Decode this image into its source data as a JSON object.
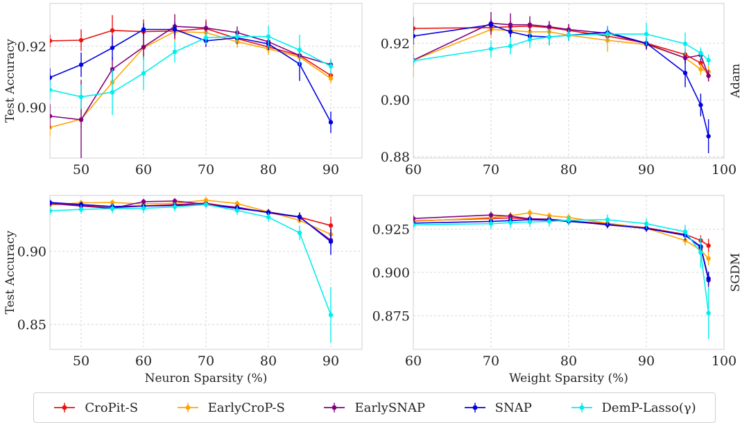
{
  "legend": [
    {
      "label": "CroPit-S",
      "color": "#e8110f"
    },
    {
      "label": "EarlyCroP-S",
      "color": "#ffa500"
    },
    {
      "label": "EarlySNAP",
      "color": "#800080"
    },
    {
      "label": "SNAP",
      "color": "#0000e0"
    },
    {
      "label": "DemP-Lasso(γ)",
      "color": "#00eeee"
    }
  ],
  "chart_data": [
    {
      "type": "line",
      "panel": "neuron-adam",
      "row_label": "",
      "xlabel": "",
      "ylabel": "Test Accuracy",
      "xlim": [
        45,
        95
      ],
      "ylim": [
        0.8835,
        0.934
      ],
      "xticks": [
        50,
        60,
        70,
        80,
        90
      ],
      "xtick_labels": [
        "50",
        "60",
        "70",
        "80",
        "90"
      ],
      "yticks": [
        0.9,
        0.92
      ],
      "ytick_labels": [
        "0.90",
        "0.92"
      ],
      "series": [
        {
          "name": "CroPit-S",
          "color": "#e8110f",
          "x": [
            45,
            50,
            55,
            60,
            65,
            70,
            75,
            80,
            85,
            90
          ],
          "y": [
            0.9218,
            0.922,
            0.9252,
            0.9248,
            0.925,
            0.9258,
            0.9225,
            0.9198,
            0.917,
            0.9105
          ],
          "err": [
            0.002,
            0.0035,
            0.005,
            0.004,
            0.003,
            0.003,
            0.002,
            0.002,
            0.002,
            0.0015
          ]
        },
        {
          "name": "EarlyCroP-S",
          "color": "#ffa500",
          "x": [
            45,
            50,
            55,
            60,
            65,
            70,
            75,
            80,
            85,
            90
          ],
          "y": [
            0.8935,
            0.8962,
            0.9082,
            0.9195,
            0.9248,
            0.9245,
            0.9215,
            0.9192,
            0.9165,
            0.9095
          ],
          "err": [
            0.003,
            0.003,
            0.004,
            0.004,
            0.003,
            0.002,
            0.002,
            0.002,
            0.002,
            0.0015
          ]
        },
        {
          "name": "EarlySNAP",
          "color": "#800080",
          "x": [
            45,
            50,
            55,
            60,
            65,
            70,
            75,
            80,
            85,
            90
          ],
          "y": [
            0.8972,
            0.896,
            0.9125,
            0.9198,
            0.9265,
            0.926,
            0.9245,
            0.9215,
            0.917,
            0.914
          ],
          "err": [
            0.004,
            0.013,
            0.004,
            0.004,
            0.004,
            0.002,
            0.002,
            0.002,
            0.002,
            0.0015
          ]
        },
        {
          "name": "SNAP",
          "color": "#0000e0",
          "x": [
            45,
            50,
            55,
            60,
            65,
            70,
            75,
            80,
            85,
            90
          ],
          "y": [
            0.9098,
            0.914,
            0.9195,
            0.9255,
            0.9255,
            0.9218,
            0.9228,
            0.9208,
            0.9142,
            0.8952
          ],
          "err": [
            0.003,
            0.004,
            0.004,
            0.002,
            0.002,
            0.002,
            0.002,
            0.002,
            0.0055,
            0.0035
          ]
        },
        {
          "name": "DemP-Lasso(γ)",
          "color": "#00eeee",
          "x": [
            45,
            50,
            55,
            60,
            65,
            70,
            75,
            80,
            85,
            90
          ],
          "y": [
            0.9058,
            0.9035,
            0.905,
            0.9112,
            0.9182,
            0.9228,
            0.9232,
            0.9232,
            0.9188,
            0.9135
          ],
          "err": [
            0.003,
            0.004,
            0.0075,
            0.0055,
            0.0035,
            0.002,
            0.002,
            0.0035,
            0.005,
            0.0025
          ]
        }
      ]
    },
    {
      "type": "line",
      "panel": "weight-adam",
      "row_label": "Adam",
      "xlabel": "",
      "ylabel": "",
      "xlim": [
        60,
        100
      ],
      "ylim": [
        0.8795,
        0.934
      ],
      "xticks": [
        60,
        70,
        80,
        90,
        100
      ],
      "xtick_labels": [
        "60",
        "70",
        "80",
        "90",
        "100"
      ],
      "yticks": [
        0.88,
        0.9,
        0.92
      ],
      "ytick_labels": [
        "0.88",
        "0.90",
        "0.92"
      ],
      "series": [
        {
          "name": "CroPit-S",
          "color": "#e8110f",
          "x": [
            60,
            70,
            72.5,
            75,
            77.5,
            80,
            85,
            90,
            95,
            97,
            98
          ],
          "y": [
            0.9252,
            0.9255,
            0.9258,
            0.926,
            0.9255,
            0.9245,
            0.9225,
            0.92,
            0.916,
            0.913,
            0.9085
          ],
          "err": [
            0.004,
            0.002,
            0.002,
            0.002,
            0.002,
            0.002,
            0.002,
            0.002,
            0.002,
            0.002,
            0.002
          ]
        },
        {
          "name": "EarlyCroP-S",
          "color": "#ffa500",
          "x": [
            60,
            70,
            72.5,
            75,
            77.5,
            80,
            85,
            90,
            95,
            97,
            98
          ],
          "y": [
            0.914,
            0.9248,
            0.9245,
            0.924,
            0.924,
            0.9228,
            0.921,
            0.9195,
            0.9148,
            0.9108,
            0.91
          ],
          "err": [
            0.006,
            0.003,
            0.002,
            0.002,
            0.002,
            0.002,
            0.004,
            0.002,
            0.002,
            0.002,
            0.002
          ]
        },
        {
          "name": "EarlySNAP",
          "color": "#800080",
          "x": [
            60,
            70,
            72.5,
            75,
            77.5,
            80,
            85,
            90,
            95,
            97,
            98
          ],
          "y": [
            0.914,
            0.927,
            0.9265,
            0.9265,
            0.9258,
            0.9248,
            0.9235,
            0.9198,
            0.9148,
            0.9158,
            0.9085
          ],
          "err": [
            0.002,
            0.004,
            0.004,
            0.003,
            0.002,
            0.002,
            0.002,
            0.002,
            0.002,
            0.002,
            0.002
          ]
        },
        {
          "name": "SNAP",
          "color": "#0000e0",
          "x": [
            60,
            70,
            72.5,
            75,
            77.5,
            80,
            85,
            90,
            95,
            97,
            98
          ],
          "y": [
            0.9225,
            0.9265,
            0.924,
            0.9225,
            0.9222,
            0.9228,
            0.9238,
            0.92,
            0.9095,
            0.8982,
            0.8872
          ],
          "err": [
            0.003,
            0.002,
            0.002,
            0.002,
            0.003,
            0.002,
            0.002,
            0.002,
            0.005,
            0.004,
            0.006
          ]
        },
        {
          "name": "DemP-Lasso(γ)",
          "color": "#00eeee",
          "x": [
            60,
            70,
            72.5,
            75,
            77.5,
            80,
            85,
            90,
            95,
            97,
            98
          ],
          "y": [
            0.9138,
            0.918,
            0.919,
            0.9212,
            0.9222,
            0.9228,
            0.9232,
            0.9232,
            0.9198,
            0.9165,
            0.914
          ],
          "err": [
            0.002,
            0.003,
            0.003,
            0.003,
            0.003,
            0.002,
            0.003,
            0.004,
            0.004,
            0.002,
            0.002
          ]
        }
      ]
    },
    {
      "type": "line",
      "panel": "neuron-sgdm",
      "row_label": "",
      "xlabel": "Neuron Sparsity (%)",
      "ylabel": "Test Accuracy",
      "xlim": [
        45,
        95
      ],
      "ylim": [
        0.833,
        0.938
      ],
      "xticks": [
        50,
        60,
        70,
        80,
        90
      ],
      "xtick_labels": [
        "50",
        "60",
        "70",
        "80",
        "90"
      ],
      "yticks": [
        0.85,
        0.9
      ],
      "ytick_labels": [
        "0.85",
        "0.90"
      ],
      "series": [
        {
          "name": "CroPit-S",
          "color": "#e8110f",
          "x": [
            45,
            50,
            55,
            60,
            65,
            70,
            75,
            80,
            85,
            90
          ],
          "y": [
            0.9325,
            0.9312,
            0.9295,
            0.9308,
            0.9318,
            0.9328,
            0.9295,
            0.9268,
            0.9232,
            0.9175
          ],
          "err": [
            0.002,
            0.002,
            0.002,
            0.002,
            0.002,
            0.002,
            0.002,
            0.002,
            0.002,
            0.006
          ]
        },
        {
          "name": "EarlyCroP-S",
          "color": "#ffa500",
          "x": [
            45,
            50,
            55,
            60,
            65,
            70,
            75,
            80,
            85,
            90
          ],
          "y": [
            0.9315,
            0.933,
            0.9332,
            0.9322,
            0.9328,
            0.9348,
            0.9325,
            0.9268,
            0.921,
            0.9115
          ],
          "err": [
            0.002,
            0.002,
            0.002,
            0.002,
            0.002,
            0.002,
            0.002,
            0.002,
            0.002,
            0.004
          ]
        },
        {
          "name": "EarlySNAP",
          "color": "#800080",
          "x": [
            45,
            50,
            55,
            60,
            65,
            70,
            75,
            80,
            85,
            90
          ],
          "y": [
            0.9325,
            0.9308,
            0.9292,
            0.9338,
            0.9342,
            0.932,
            0.93,
            0.9262,
            0.9232,
            0.9075
          ],
          "err": [
            0.002,
            0.002,
            0.002,
            0.002,
            0.002,
            0.002,
            0.002,
            0.002,
            0.003,
            0.004
          ]
        },
        {
          "name": "SNAP",
          "color": "#0000e0",
          "x": [
            45,
            50,
            55,
            60,
            65,
            70,
            75,
            80,
            85,
            90
          ],
          "y": [
            0.9332,
            0.9318,
            0.9305,
            0.9308,
            0.9312,
            0.9318,
            0.9292,
            0.9265,
            0.9235,
            0.9065
          ],
          "err": [
            0.002,
            0.002,
            0.002,
            0.002,
            0.002,
            0.002,
            0.002,
            0.002,
            0.003,
            0.009
          ]
        },
        {
          "name": "DemP-Lasso(γ)",
          "color": "#00eeee",
          "x": [
            45,
            50,
            55,
            60,
            65,
            70,
            75,
            80,
            85,
            90
          ],
          "y": [
            0.9275,
            0.9285,
            0.929,
            0.9292,
            0.9302,
            0.9318,
            0.9278,
            0.9232,
            0.9125,
            0.8565
          ],
          "err": [
            0.003,
            0.003,
            0.003,
            0.003,
            0.003,
            0.002,
            0.003,
            0.003,
            0.005,
            0.019
          ]
        }
      ]
    },
    {
      "type": "line",
      "panel": "weight-sgdm",
      "row_label": "SGDM",
      "xlabel": "Weight Sparsity (%)",
      "ylabel": "",
      "xlim": [
        60,
        100
      ],
      "ylim": [
        0.8555,
        0.9445
      ],
      "xticks": [
        60,
        70,
        80,
        90,
        100
      ],
      "xtick_labels": [
        "60",
        "70",
        "80",
        "90",
        "100"
      ],
      "yticks": [
        0.875,
        0.9,
        0.925
      ],
      "ytick_labels": [
        "0.875",
        "0.900",
        "0.925"
      ],
      "series": [
        {
          "name": "CroPit-S",
          "color": "#e8110f",
          "x": [
            60,
            70,
            72.5,
            75,
            77.5,
            80,
            85,
            90,
            95,
            97,
            98
          ],
          "y": [
            0.9298,
            0.9312,
            0.9315,
            0.931,
            0.9305,
            0.9298,
            0.9282,
            0.9258,
            0.922,
            0.9185,
            0.9155
          ],
          "err": [
            0.002,
            0.002,
            0.002,
            0.002,
            0.002,
            0.002,
            0.002,
            0.002,
            0.003,
            0.003,
            0.004
          ]
        },
        {
          "name": "EarlyCroP-S",
          "color": "#ffa500",
          "x": [
            60,
            70,
            72.5,
            75,
            77.5,
            80,
            85,
            90,
            95,
            97,
            98
          ],
          "y": [
            0.9295,
            0.9318,
            0.9328,
            0.9345,
            0.9328,
            0.9318,
            0.9285,
            0.9255,
            0.9185,
            0.913,
            0.908
          ],
          "err": [
            0.002,
            0.002,
            0.002,
            0.002,
            0.002,
            0.002,
            0.002,
            0.002,
            0.003,
            0.003,
            0.004
          ]
        },
        {
          "name": "EarlySNAP",
          "color": "#800080",
          "x": [
            60,
            70,
            72.5,
            75,
            77.5,
            80,
            85,
            90,
            95,
            97,
            98
          ],
          "y": [
            0.9312,
            0.9332,
            0.9325,
            0.931,
            0.9308,
            0.9298,
            0.9275,
            0.9255,
            0.9215,
            0.9145,
            0.8955
          ],
          "err": [
            0.002,
            0.002,
            0.002,
            0.002,
            0.002,
            0.002,
            0.002,
            0.002,
            0.003,
            0.003,
            0.004
          ]
        },
        {
          "name": "SNAP",
          "color": "#0000e0",
          "x": [
            60,
            70,
            72.5,
            75,
            77.5,
            80,
            85,
            90,
            95,
            97,
            98
          ],
          "y": [
            0.9285,
            0.9295,
            0.93,
            0.9305,
            0.9302,
            0.9295,
            0.9278,
            0.9255,
            0.9215,
            0.915,
            0.8965
          ],
          "err": [
            0.002,
            0.002,
            0.002,
            0.002,
            0.002,
            0.002,
            0.002,
            0.002,
            0.003,
            0.003,
            0.004
          ]
        },
        {
          "name": "DemP-Lasso(γ)",
          "color": "#00eeee",
          "x": [
            60,
            70,
            72.5,
            75,
            77.5,
            80,
            85,
            90,
            95,
            97,
            98
          ],
          "y": [
            0.9275,
            0.9282,
            0.9288,
            0.9292,
            0.9295,
            0.9302,
            0.9305,
            0.9282,
            0.9235,
            0.9115,
            0.8765
          ],
          "err": [
            0.002,
            0.003,
            0.003,
            0.003,
            0.003,
            0.003,
            0.003,
            0.003,
            0.004,
            0.009,
            0.015
          ]
        }
      ]
    }
  ]
}
